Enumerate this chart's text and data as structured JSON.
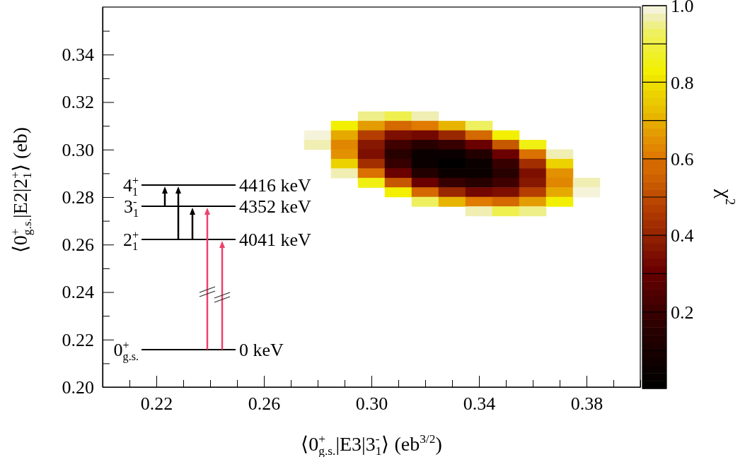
{
  "chart_data": {
    "type": "scatter",
    "marker": "square",
    "xlabel": "⟨0$^{+}$$_{g.s.}$|E3|3$^{-}$$_{1}$⟩  (eb$^{3/2}$)",
    "ylabel": "⟨0$^{+}$$_{g.s.}$|E2|2$^{+}$$_{1}$⟩  (eb)",
    "clabel": "χ$^{2}$",
    "x": [
      0.3,
      0.31,
      0.32,
      0.29,
      0.3,
      0.31,
      0.32,
      0.33,
      0.34,
      0.28,
      0.29,
      0.3,
      0.31,
      0.32,
      0.33,
      0.34,
      0.35,
      0.28,
      0.29,
      0.3,
      0.31,
      0.32,
      0.33,
      0.34,
      0.35,
      0.36,
      0.29,
      0.3,
      0.31,
      0.32,
      0.33,
      0.34,
      0.35,
      0.36,
      0.37,
      0.29,
      0.3,
      0.31,
      0.32,
      0.33,
      0.34,
      0.35,
      0.36,
      0.37,
      0.29,
      0.3,
      0.31,
      0.32,
      0.33,
      0.34,
      0.35,
      0.36,
      0.37,
      0.3,
      0.31,
      0.32,
      0.33,
      0.34,
      0.35,
      0.36,
      0.37,
      0.38,
      0.31,
      0.32,
      0.33,
      0.34,
      0.35,
      0.36,
      0.37,
      0.38,
      0.32,
      0.33,
      0.34,
      0.35,
      0.36,
      0.37,
      0.34,
      0.35,
      0.36
    ],
    "values": [
      0.314,
      0.314,
      0.314,
      0.31,
      0.31,
      0.31,
      0.31,
      0.31,
      0.31,
      0.306,
      0.306,
      0.306,
      0.306,
      0.306,
      0.306,
      0.306,
      0.306,
      0.302,
      0.302,
      0.302,
      0.302,
      0.302,
      0.302,
      0.302,
      0.302,
      0.302,
      0.298,
      0.298,
      0.298,
      0.298,
      0.298,
      0.298,
      0.298,
      0.298,
      0.298,
      0.294,
      0.294,
      0.294,
      0.294,
      0.294,
      0.294,
      0.294,
      0.294,
      0.294,
      0.29,
      0.29,
      0.29,
      0.29,
      0.29,
      0.29,
      0.29,
      0.29,
      0.29,
      0.286,
      0.286,
      0.286,
      0.286,
      0.286,
      0.286,
      0.286,
      0.286,
      0.286,
      0.282,
      0.282,
      0.282,
      0.282,
      0.282,
      0.282,
      0.282,
      0.282,
      0.278,
      0.278,
      0.278,
      0.278,
      0.278,
      0.278,
      0.274,
      0.274,
      0.274
    ],
    "cvalues": [
      0.94,
      0.9,
      0.96,
      0.83,
      0.66,
      0.58,
      0.6,
      0.71,
      0.92,
      0.99,
      0.68,
      0.47,
      0.35,
      0.33,
      0.4,
      0.57,
      0.83,
      0.96,
      0.62,
      0.36,
      0.21,
      0.14,
      0.18,
      0.3,
      0.53,
      0.84,
      0.64,
      0.35,
      0.15,
      0.05,
      0.04,
      0.13,
      0.31,
      0.59,
      0.96,
      0.76,
      0.43,
      0.19,
      0.05,
      0,
      0.05,
      0.19,
      0.43,
      0.76,
      0.96,
      0.59,
      0.31,
      0.13,
      0.04,
      0.05,
      0.15,
      0.35,
      0.64,
      0.84,
      0.53,
      0.3,
      0.18,
      0.14,
      0.21,
      0.36,
      0.62,
      0.96,
      0.83,
      0.57,
      0.4,
      0.33,
      0.35,
      0.47,
      0.68,
      0.99,
      0.92,
      0.71,
      0.6,
      0.58,
      0.66,
      0.83,
      0.96,
      0.9,
      0.94
    ],
    "xlim": [
      0.2,
      0.4
    ],
    "xticks": [
      {
        "value": 0.2,
        "label": null
      },
      {
        "value": 0.21,
        "label": null
      },
      0.22,
      {
        "value": 0.23,
        "label": null
      },
      {
        "value": 0.24,
        "label": null
      },
      {
        "value": 0.25,
        "label": null
      },
      0.26,
      {
        "value": 0.27,
        "label": null
      },
      {
        "value": 0.28,
        "label": null
      },
      {
        "value": 0.29,
        "label": null
      },
      {
        "value": 0.3,
        "label": "0.30"
      },
      {
        "value": 0.31,
        "label": null
      },
      {
        "value": 0.32,
        "label": null
      },
      {
        "value": 0.33,
        "label": null
      },
      0.34,
      {
        "value": 0.35,
        "label": null
      },
      {
        "value": 0.36,
        "label": null
      },
      {
        "value": 0.37,
        "label": null
      },
      0.38,
      {
        "value": 0.39,
        "label": null
      },
      {
        "value": 0.4,
        "label": null
      }
    ],
    "ylim": [
      0.2,
      0.36
    ],
    "yticks": [
      {
        "value": 0.2,
        "label": "0.20"
      },
      {
        "value": 0.21,
        "label": null
      },
      0.22,
      {
        "value": 0.23,
        "label": null
      },
      0.24,
      {
        "value": 0.25,
        "label": null
      },
      0.26,
      {
        "value": 0.27,
        "label": null
      },
      0.28,
      {
        "value": 0.29,
        "label": null
      },
      {
        "value": 0.3,
        "label": "0.30"
      },
      {
        "value": 0.31,
        "label": null
      },
      0.32,
      {
        "value": 0.33,
        "label": null
      },
      0.34,
      {
        "value": 0.35,
        "label": null
      }
    ],
    "clim": [
      0,
      1
    ],
    "cticks": [
      {
        "value": 0.1,
        "label": null
      },
      0.2,
      {
        "value": 0.3,
        "label": null
      },
      0.4,
      {
        "value": 0.5,
        "label": null
      },
      0.6,
      {
        "value": 0.7,
        "label": null
      },
      0.8,
      {
        "value": 0.9,
        "label": null
      },
      {
        "value": 1,
        "label": "1.0"
      }
    ],
    "annotations": [
      "4$_{1}$$^{+}$",
      "3$_{1}$$^{-}$",
      "2$_{1}$$^{+}$",
      "0$_{g.s.}$$^{+}$",
      "4416 keV",
      "4352 keV",
      "4041 keV",
      "0 keV"
    ]
  }
}
